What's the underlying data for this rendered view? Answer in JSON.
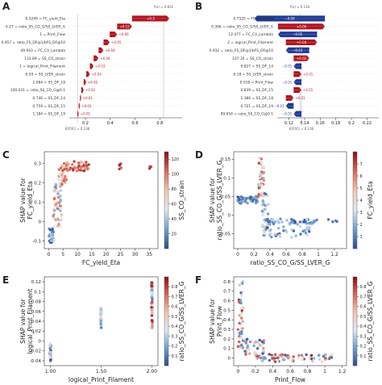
{
  "colors": {
    "positive": "#b0151f",
    "negative": "#1f3a93",
    "cmap": [
      "#2b4c8c",
      "#6f9fd0",
      "#dbe7f4",
      "#f4c7b3",
      "#d96a55",
      "#8b0d1a"
    ]
  },
  "chart_data": [
    {
      "panel": "A",
      "type": "waterfall",
      "fx_label": "f(x) = 0.831",
      "fx": 0.831,
      "efx_label": "E[f(X)] = 0.136",
      "efx": 0.136,
      "xlim": [
        0.07,
        0.98
      ],
      "xticks": [
        "0.2",
        "0.4",
        "0.6",
        "0.8"
      ],
      "features": [
        {
          "value": "0.3249",
          "name": "FC_yield_Eta",
          "contrib": 0.3,
          "label": "+0.3"
        },
        {
          "value": "0.27",
          "name": "ratio_SS_CO_G/SS_LVER_G",
          "contrib": 0.12,
          "label": "+0.12"
        },
        {
          "value": "1",
          "name": "Print_Flow",
          "contrib": 0.06,
          "label": "+0.06"
        },
        {
          "value": "0.957",
          "name": "ratio_FS_DF@1/bFS_DF@10",
          "contrib": 0.05,
          "label": "+0.05"
        },
        {
          "value": "49.943",
          "name": "FC_CV_Lambda",
          "contrib": 0.04,
          "label": "+0.04"
        },
        {
          "value": "133.89",
          "name": "SS_CO_strain",
          "contrib": 0.04,
          "label": "+0.04"
        },
        {
          "value": "1",
          "name": "logical_Print_Filament",
          "contrib": 0.03,
          "label": "+0.03"
        },
        {
          "value": "9.59",
          "name": "SS_LVER_strain",
          "contrib": 0.03,
          "label": "+0.03"
        },
        {
          "value": "1.084",
          "name": "SS_DF_18",
          "contrib": 0.02,
          "label": "+0.02"
        },
        {
          "value": "100.031",
          "name": "ratio_SS_CO_G@0.1",
          "contrib": 0.02,
          "label": "+0.02"
        },
        {
          "value": "0.746",
          "name": "SS_DF_14",
          "contrib": 0.01,
          "label": "+0.01"
        },
        {
          "value": "0.759",
          "name": "SS_DF_15",
          "contrib": 0.01,
          "label": "+0.01"
        },
        {
          "value": "1.184",
          "name": "SS_DF_19",
          "contrib": 0.01,
          "label": "+0.01"
        }
      ]
    },
    {
      "panel": "B",
      "type": "waterfall",
      "fx_label": "f(x) = 0.134",
      "fx": 0.134,
      "efx_label": "E[f(X)] = 0.136",
      "efx": 0.136,
      "xlim": [
        0.105,
        0.235
      ],
      "xticks": [
        "0.12",
        "0.14",
        "0.16",
        "0.18",
        "0.2",
        "0.22"
      ],
      "features": [
        {
          "value": "0.7525",
          "name": "FC_yield_Eta",
          "contrib": -0.09,
          "label": "−0.09"
        },
        {
          "value": "0.306",
          "name": "ratio_SS_CO_G/SS_LVER_G",
          "contrib": 0.06,
          "label": "+0.06"
        },
        {
          "value": "12.477",
          "name": "FC_CV_Lambda",
          "contrib": -0.05,
          "label": "−0.05"
        },
        {
          "value": "2",
          "name": "logical_Print_Filament",
          "contrib": 0.04,
          "label": "+0.04"
        },
        {
          "value": "0.932",
          "name": "ratio_FS_DF@1/bFS_DF@10",
          "contrib": -0.03,
          "label": "−0.03"
        },
        {
          "value": "107.35",
          "name": "SS_CO_strain",
          "contrib": 0.02,
          "label": "+0.02"
        },
        {
          "value": "0.827",
          "name": "SS_DF_14",
          "contrib": -0.01,
          "label": "−0.01"
        },
        {
          "value": "9.18",
          "name": "SS_LVER_strain",
          "contrib": 0.01,
          "label": "+0.01"
        },
        {
          "value": "0.018",
          "name": "Print_Flow",
          "contrib": -0.01,
          "label": "−0.01"
        },
        {
          "value": "0.839",
          "name": "SS_DF_15",
          "contrib": 0.01,
          "label": "+0.01"
        },
        {
          "value": "1.386",
          "name": "SS_DF_18",
          "contrib": 0.01,
          "label": "+0.01"
        },
        {
          "value": "0.721",
          "name": "SS_DF_19",
          "contrib": -0.01,
          "label": "−0.01"
        },
        {
          "value": "99.654",
          "name": "ratio_SS_CO_G@0.1",
          "contrib": -0.01,
          "label": "−0.01"
        }
      ]
    },
    {
      "panel": "C",
      "type": "scatter",
      "xlabel": "FC_yield_Eta",
      "ylabel": "SHAP value for\nFC_yield_Eta",
      "colorbar_label": "SS_CO_strain",
      "xlim": [
        -1.5,
        38
      ],
      "ylim": [
        -0.14,
        0.36
      ],
      "xticks": [
        0,
        5,
        10,
        15,
        20,
        25,
        30,
        35
      ],
      "yticks": [
        -0.1,
        0.0,
        0.1,
        0.2,
        0.3
      ],
      "cbar_range": [
        0,
        130
      ],
      "cbar_ticks": [
        20,
        40,
        60,
        80,
        100,
        120
      ],
      "clusters": [
        {
          "x": [
            0.1,
            2.0
          ],
          "y": [
            -0.11,
            -0.03
          ],
          "c": [
            0,
            60
          ],
          "n": 45
        },
        {
          "x": [
            1.5,
            4.5
          ],
          "y": [
            -0.03,
            0.2
          ],
          "c": [
            20,
            110
          ],
          "n": 55
        },
        {
          "x": [
            3.5,
            6.5
          ],
          "y": [
            0.18,
            0.3
          ],
          "c": [
            60,
            120
          ],
          "n": 40
        },
        {
          "x": [
            6.0,
            14.0
          ],
          "y": [
            0.26,
            0.31
          ],
          "c": [
            80,
            130
          ],
          "n": 45
        },
        {
          "x": [
            24.5,
            25.2
          ],
          "y": [
            0.27,
            0.3
          ],
          "c": [
            110,
            130
          ],
          "n": 5
        },
        {
          "x": [
            35.0,
            35.8
          ],
          "y": [
            0.27,
            0.3
          ],
          "c": [
            110,
            130
          ],
          "n": 4
        }
      ]
    },
    {
      "panel": "D",
      "type": "scatter",
      "xlabel": "ratio_SS_CO_G/SS_LVER_G",
      "ylabel": "SHAP value for\nratio_SS_CO_G/SS_LVER_G",
      "colorbar_label": "FC_yield_Eta",
      "xlim": [
        -0.05,
        1.35
      ],
      "ylim": [
        -0.09,
        0.17
      ],
      "xticks": [
        0.0,
        0.2,
        0.4,
        0.6,
        0.8,
        1.0,
        1.2
      ],
      "yticks": [
        -0.05,
        0.0,
        0.05,
        0.1,
        0.15
      ],
      "cbar_range": [
        0,
        8
      ],
      "cbar_ticks": [
        1,
        2,
        3,
        4,
        5,
        6,
        7
      ],
      "clusters": [
        {
          "x": [
            0.0,
            0.25
          ],
          "y": [
            0.03,
            0.05
          ],
          "c": [
            0,
            2
          ],
          "n": 45
        },
        {
          "x": [
            0.25,
            0.33
          ],
          "y": [
            0.05,
            0.16
          ],
          "c": [
            2,
            8
          ],
          "n": 40
        },
        {
          "x": [
            0.3,
            0.38
          ],
          "y": [
            -0.06,
            0.06
          ],
          "c": [
            0,
            5
          ],
          "n": 40
        },
        {
          "x": [
            0.35,
            1.0
          ],
          "y": [
            -0.025,
            -0.01
          ],
          "c": [
            0,
            3
          ],
          "n": 60
        },
        {
          "x": [
            0.35,
            0.9
          ],
          "y": [
            -0.06,
            -0.03
          ],
          "c": [
            0,
            3
          ],
          "n": 35
        },
        {
          "x": [
            1.1,
            1.3
          ],
          "y": [
            -0.02,
            -0.01
          ],
          "c": [
            0,
            1
          ],
          "n": 4
        }
      ]
    },
    {
      "panel": "E",
      "type": "scatter",
      "xlabel": "logical_Print_Filament",
      "ylabel": "SHAP value for\nlogical_Print_Filament",
      "colorbar_label": "ratio_SS_CO_G/SS_LVER_G",
      "xlim": [
        0.94,
        2.06
      ],
      "ylim": [
        -0.05,
        0.13
      ],
      "xticks": [
        1.0,
        1.5,
        2.0
      ],
      "xticklabels": [
        "1.00",
        "1.50",
        "2.00"
      ],
      "yticks": [
        -0.04,
        -0.02,
        0.0,
        0.02,
        0.04,
        0.06,
        0.08,
        0.1,
        0.12
      ],
      "cbar_range": [
        0,
        0.9
      ],
      "cbar_ticks": [
        0.1,
        0.2,
        0.3,
        0.4,
        0.5,
        0.6,
        0.7,
        0.8
      ],
      "clusters": [
        {
          "x": [
            0.995,
            1.005
          ],
          "y": [
            -0.042,
            -0.005
          ],
          "c": [
            0,
            0.6
          ],
          "n": 45
        },
        {
          "x": [
            1.495,
            1.505
          ],
          "y": [
            0.02,
            0.075
          ],
          "c": [
            0.1,
            0.5
          ],
          "n": 30
        },
        {
          "x": [
            1.995,
            2.005
          ],
          "y": [
            0.02,
            0.12
          ],
          "c": [
            0.1,
            0.9
          ],
          "n": 55
        }
      ]
    },
    {
      "panel": "F",
      "type": "scatter",
      "xlabel": "Print_Flow",
      "ylabel": "SHAP value for\nPrint_Flow",
      "colorbar_label": "ratio_SS_CO_G/SS_LVER_G",
      "xlim": [
        -0.05,
        1.25
      ],
      "ylim": [
        -0.08,
        0.85
      ],
      "xticks": [
        0.0,
        0.2,
        0.4,
        0.6,
        0.8,
        1.0,
        1.2
      ],
      "yticks": [
        0.0,
        0.1,
        0.2,
        0.3,
        0.4,
        0.5,
        0.6,
        0.7,
        0.8
      ],
      "cbar_range": [
        0,
        0.9
      ],
      "cbar_ticks": [
        0.1,
        0.2,
        0.3,
        0.4,
        0.5,
        0.6,
        0.7,
        0.8
      ],
      "clusters": [
        {
          "x": [
            0.0,
            0.06
          ],
          "y": [
            0.1,
            0.8
          ],
          "c": [
            0,
            0.9
          ],
          "n": 45
        },
        {
          "x": [
            0.05,
            0.3
          ],
          "y": [
            0.02,
            0.2
          ],
          "c": [
            0,
            0.8
          ],
          "n": 40
        },
        {
          "x": [
            0.2,
            1.1
          ],
          "y": [
            -0.04,
            0.04
          ],
          "c": [
            0,
            0.9
          ],
          "n": 80
        }
      ]
    }
  ]
}
